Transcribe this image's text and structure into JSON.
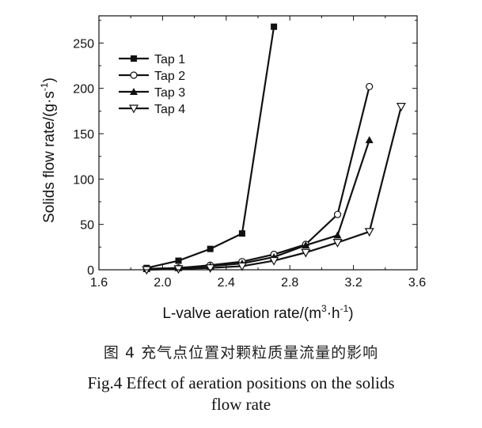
{
  "chart_data": {
    "type": "line",
    "title": "",
    "xlabel_base": "L-valve aeration rate/(m",
    "xlabel_sup": "3",
    "xlabel_mid": "·h",
    "xlabel_sup2": "-1",
    "xlabel_end": ")",
    "ylabel_base": "Solids flow rate/(g·s",
    "ylabel_sup": "-1",
    "ylabel_end": ")",
    "xlim": [
      1.6,
      3.6
    ],
    "ylim": [
      0,
      280
    ],
    "xticks": [
      "1.6",
      "2.0",
      "2.4",
      "2.8",
      "3.2",
      "3.6"
    ],
    "yticks": [
      "0",
      "50",
      "100",
      "150",
      "200",
      "250"
    ],
    "legend_position": "top-left",
    "series": [
      {
        "name": "Tap 1",
        "marker": "square-filled",
        "x": [
          1.9,
          2.1,
          2.3,
          2.5,
          2.7
        ],
        "y": [
          2,
          10,
          23,
          40,
          268
        ]
      },
      {
        "name": "Tap 2",
        "marker": "circle-open",
        "x": [
          1.9,
          2.1,
          2.3,
          2.5,
          2.7,
          2.9,
          3.1,
          3.3
        ],
        "y": [
          1,
          2,
          5,
          9,
          17,
          28,
          61,
          202
        ]
      },
      {
        "name": "Tap 3",
        "marker": "triangle-up-filled",
        "x": [
          1.9,
          2.1,
          2.3,
          2.5,
          2.7,
          2.9,
          3.1,
          3.3
        ],
        "y": [
          1,
          2,
          4,
          7,
          14,
          27,
          38,
          143
        ]
      },
      {
        "name": "Tap 4",
        "marker": "triangle-down-open",
        "x": [
          1.9,
          2.1,
          2.3,
          2.5,
          2.7,
          2.9,
          3.1,
          3.3,
          3.5
        ],
        "y": [
          0,
          1,
          2,
          4,
          10,
          19,
          30,
          42,
          180
        ]
      }
    ]
  },
  "caption": {
    "chinese": "图 4  充气点位置对颗粒质量流量的影响",
    "english_line1": "Fig.4  Effect of aeration positions on the solids",
    "english_line2": "flow rate"
  }
}
